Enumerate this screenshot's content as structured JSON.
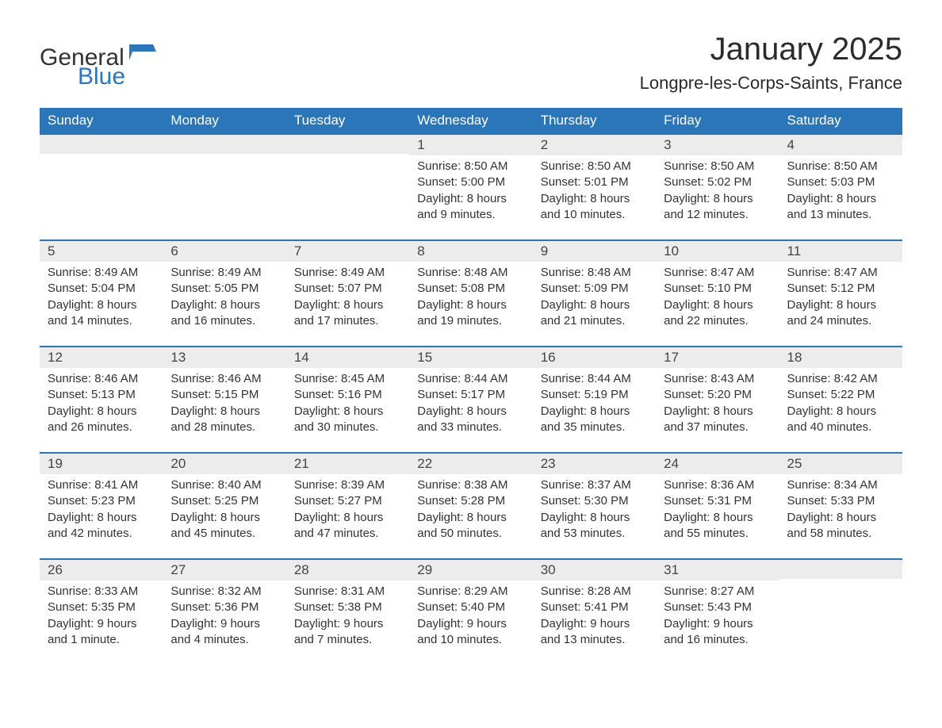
{
  "brand": {
    "word1": "General",
    "word2": "Blue",
    "word1_color": "#333333",
    "word2_color": "#2a76b8",
    "icon_color": "#2a76b8"
  },
  "title": "January 2025",
  "location": "Longpre-les-Corps-Saints, France",
  "colors": {
    "header_bg": "#2a76b8",
    "header_text": "#ffffff",
    "daynum_bg": "#ececec",
    "row_border": "#2a76b8",
    "body_text": "#333333",
    "page_bg": "#ffffff"
  },
  "typography": {
    "title_fontsize": 40,
    "location_fontsize": 22,
    "dayheader_fontsize": 17,
    "daynum_fontsize": 17,
    "body_fontsize": 15
  },
  "day_headers": [
    "Sunday",
    "Monday",
    "Tuesday",
    "Wednesday",
    "Thursday",
    "Friday",
    "Saturday"
  ],
  "weeks": [
    [
      null,
      null,
      null,
      {
        "n": "1",
        "sunrise": "Sunrise: 8:50 AM",
        "sunset": "Sunset: 5:00 PM",
        "dl1": "Daylight: 8 hours",
        "dl2": "and 9 minutes."
      },
      {
        "n": "2",
        "sunrise": "Sunrise: 8:50 AM",
        "sunset": "Sunset: 5:01 PM",
        "dl1": "Daylight: 8 hours",
        "dl2": "and 10 minutes."
      },
      {
        "n": "3",
        "sunrise": "Sunrise: 8:50 AM",
        "sunset": "Sunset: 5:02 PM",
        "dl1": "Daylight: 8 hours",
        "dl2": "and 12 minutes."
      },
      {
        "n": "4",
        "sunrise": "Sunrise: 8:50 AM",
        "sunset": "Sunset: 5:03 PM",
        "dl1": "Daylight: 8 hours",
        "dl2": "and 13 minutes."
      }
    ],
    [
      {
        "n": "5",
        "sunrise": "Sunrise: 8:49 AM",
        "sunset": "Sunset: 5:04 PM",
        "dl1": "Daylight: 8 hours",
        "dl2": "and 14 minutes."
      },
      {
        "n": "6",
        "sunrise": "Sunrise: 8:49 AM",
        "sunset": "Sunset: 5:05 PM",
        "dl1": "Daylight: 8 hours",
        "dl2": "and 16 minutes."
      },
      {
        "n": "7",
        "sunrise": "Sunrise: 8:49 AM",
        "sunset": "Sunset: 5:07 PM",
        "dl1": "Daylight: 8 hours",
        "dl2": "and 17 minutes."
      },
      {
        "n": "8",
        "sunrise": "Sunrise: 8:48 AM",
        "sunset": "Sunset: 5:08 PM",
        "dl1": "Daylight: 8 hours",
        "dl2": "and 19 minutes."
      },
      {
        "n": "9",
        "sunrise": "Sunrise: 8:48 AM",
        "sunset": "Sunset: 5:09 PM",
        "dl1": "Daylight: 8 hours",
        "dl2": "and 21 minutes."
      },
      {
        "n": "10",
        "sunrise": "Sunrise: 8:47 AM",
        "sunset": "Sunset: 5:10 PM",
        "dl1": "Daylight: 8 hours",
        "dl2": "and 22 minutes."
      },
      {
        "n": "11",
        "sunrise": "Sunrise: 8:47 AM",
        "sunset": "Sunset: 5:12 PM",
        "dl1": "Daylight: 8 hours",
        "dl2": "and 24 minutes."
      }
    ],
    [
      {
        "n": "12",
        "sunrise": "Sunrise: 8:46 AM",
        "sunset": "Sunset: 5:13 PM",
        "dl1": "Daylight: 8 hours",
        "dl2": "and 26 minutes."
      },
      {
        "n": "13",
        "sunrise": "Sunrise: 8:46 AM",
        "sunset": "Sunset: 5:15 PM",
        "dl1": "Daylight: 8 hours",
        "dl2": "and 28 minutes."
      },
      {
        "n": "14",
        "sunrise": "Sunrise: 8:45 AM",
        "sunset": "Sunset: 5:16 PM",
        "dl1": "Daylight: 8 hours",
        "dl2": "and 30 minutes."
      },
      {
        "n": "15",
        "sunrise": "Sunrise: 8:44 AM",
        "sunset": "Sunset: 5:17 PM",
        "dl1": "Daylight: 8 hours",
        "dl2": "and 33 minutes."
      },
      {
        "n": "16",
        "sunrise": "Sunrise: 8:44 AM",
        "sunset": "Sunset: 5:19 PM",
        "dl1": "Daylight: 8 hours",
        "dl2": "and 35 minutes."
      },
      {
        "n": "17",
        "sunrise": "Sunrise: 8:43 AM",
        "sunset": "Sunset: 5:20 PM",
        "dl1": "Daylight: 8 hours",
        "dl2": "and 37 minutes."
      },
      {
        "n": "18",
        "sunrise": "Sunrise: 8:42 AM",
        "sunset": "Sunset: 5:22 PM",
        "dl1": "Daylight: 8 hours",
        "dl2": "and 40 minutes."
      }
    ],
    [
      {
        "n": "19",
        "sunrise": "Sunrise: 8:41 AM",
        "sunset": "Sunset: 5:23 PM",
        "dl1": "Daylight: 8 hours",
        "dl2": "and 42 minutes."
      },
      {
        "n": "20",
        "sunrise": "Sunrise: 8:40 AM",
        "sunset": "Sunset: 5:25 PM",
        "dl1": "Daylight: 8 hours",
        "dl2": "and 45 minutes."
      },
      {
        "n": "21",
        "sunrise": "Sunrise: 8:39 AM",
        "sunset": "Sunset: 5:27 PM",
        "dl1": "Daylight: 8 hours",
        "dl2": "and 47 minutes."
      },
      {
        "n": "22",
        "sunrise": "Sunrise: 8:38 AM",
        "sunset": "Sunset: 5:28 PM",
        "dl1": "Daylight: 8 hours",
        "dl2": "and 50 minutes."
      },
      {
        "n": "23",
        "sunrise": "Sunrise: 8:37 AM",
        "sunset": "Sunset: 5:30 PM",
        "dl1": "Daylight: 8 hours",
        "dl2": "and 53 minutes."
      },
      {
        "n": "24",
        "sunrise": "Sunrise: 8:36 AM",
        "sunset": "Sunset: 5:31 PM",
        "dl1": "Daylight: 8 hours",
        "dl2": "and 55 minutes."
      },
      {
        "n": "25",
        "sunrise": "Sunrise: 8:34 AM",
        "sunset": "Sunset: 5:33 PM",
        "dl1": "Daylight: 8 hours",
        "dl2": "and 58 minutes."
      }
    ],
    [
      {
        "n": "26",
        "sunrise": "Sunrise: 8:33 AM",
        "sunset": "Sunset: 5:35 PM",
        "dl1": "Daylight: 9 hours",
        "dl2": "and 1 minute."
      },
      {
        "n": "27",
        "sunrise": "Sunrise: 8:32 AM",
        "sunset": "Sunset: 5:36 PM",
        "dl1": "Daylight: 9 hours",
        "dl2": "and 4 minutes."
      },
      {
        "n": "28",
        "sunrise": "Sunrise: 8:31 AM",
        "sunset": "Sunset: 5:38 PM",
        "dl1": "Daylight: 9 hours",
        "dl2": "and 7 minutes."
      },
      {
        "n": "29",
        "sunrise": "Sunrise: 8:29 AM",
        "sunset": "Sunset: 5:40 PM",
        "dl1": "Daylight: 9 hours",
        "dl2": "and 10 minutes."
      },
      {
        "n": "30",
        "sunrise": "Sunrise: 8:28 AM",
        "sunset": "Sunset: 5:41 PM",
        "dl1": "Daylight: 9 hours",
        "dl2": "and 13 minutes."
      },
      {
        "n": "31",
        "sunrise": "Sunrise: 8:27 AM",
        "sunset": "Sunset: 5:43 PM",
        "dl1": "Daylight: 9 hours",
        "dl2": "and 16 minutes."
      },
      null
    ]
  ]
}
